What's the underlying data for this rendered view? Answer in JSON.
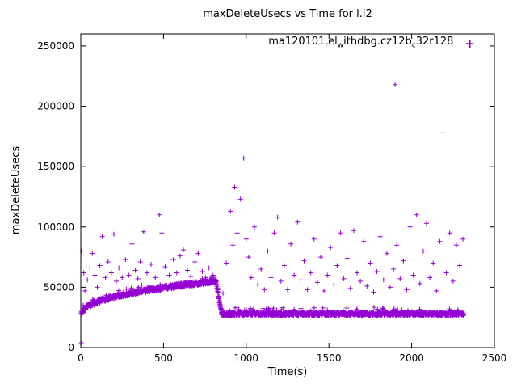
{
  "chart_data": {
    "type": "scatter",
    "title": "maxDeleteUsecs vs Time for l.i2",
    "xlabel": "Time(s)",
    "ylabel": "maxDeleteUsecs",
    "xlim": [
      0,
      2500
    ],
    "ylim": [
      0,
      260000
    ],
    "x_ticks": [
      0,
      500,
      1000,
      1500,
      2000,
      2500
    ],
    "y_ticks": [
      0,
      50000,
      100000,
      150000,
      200000,
      250000
    ],
    "grid": false,
    "marker": "plus",
    "color": "#9400d3",
    "legend": {
      "position": "top-center-inside",
      "label": "ma120101_rel_withdbg.cz12b_c32r128",
      "parts": [
        {
          "t": "ma120101",
          "sub": false
        },
        {
          "t": "r",
          "sub": true
        },
        {
          "t": "el",
          "sub": false
        },
        {
          "t": "w",
          "sub": true
        },
        {
          "t": "ithdbg.cz12b",
          "sub": false
        },
        {
          "t": "c",
          "sub": true
        },
        {
          "t": "32r128",
          "sub": false
        }
      ]
    },
    "series": [
      {
        "name": "ma120101_rel_withdbg.cz12b_c32r128",
        "dense_bands": [
          {
            "x_start": 2,
            "x_end": 818,
            "step": 1.2,
            "base": 25000,
            "amp": 30000,
            "power": 0.4,
            "ref": 820,
            "jitter": 1800
          },
          {
            "x_start": 852,
            "x_end": 2315,
            "step": 1.2,
            "base": 28000,
            "amp": 0,
            "power": 1,
            "ref": 820,
            "jitter": 1500
          }
        ],
        "transition": {
          "x_start": 818,
          "x_end": 852,
          "y_start": 54000,
          "y_end": 29000,
          "step": 1,
          "jitter": 2200
        },
        "outliers": [
          [
            3,
            4000
          ],
          [
            5,
            80000
          ],
          [
            18,
            62000
          ],
          [
            25,
            47000
          ],
          [
            40,
            56000
          ],
          [
            55,
            66000
          ],
          [
            70,
            78000
          ],
          [
            85,
            60000
          ],
          [
            100,
            50000
          ],
          [
            115,
            68000
          ],
          [
            130,
            92000
          ],
          [
            150,
            58000
          ],
          [
            165,
            71000
          ],
          [
            185,
            62000
          ],
          [
            200,
            94000
          ],
          [
            215,
            55000
          ],
          [
            230,
            66000
          ],
          [
            250,
            58000
          ],
          [
            270,
            73000
          ],
          [
            290,
            60000
          ],
          [
            310,
            86000
          ],
          [
            330,
            64000
          ],
          [
            345,
            57000
          ],
          [
            360,
            71000
          ],
          [
            380,
            96000
          ],
          [
            400,
            62000
          ],
          [
            425,
            69000
          ],
          [
            450,
            58000
          ],
          [
            475,
            110000
          ],
          [
            490,
            95000
          ],
          [
            510,
            67000
          ],
          [
            535,
            60000
          ],
          [
            560,
            73000
          ],
          [
            580,
            62000
          ],
          [
            600,
            76000
          ],
          [
            620,
            81000
          ],
          [
            645,
            64000
          ],
          [
            665,
            59000
          ],
          [
            690,
            71000
          ],
          [
            710,
            78000
          ],
          [
            735,
            63000
          ],
          [
            755,
            58000
          ],
          [
            775,
            66000
          ],
          [
            800,
            60000
          ],
          [
            860,
            45000
          ],
          [
            880,
            70000
          ],
          [
            905,
            113000
          ],
          [
            920,
            85000
          ],
          [
            930,
            133000
          ],
          [
            945,
            95000
          ],
          [
            965,
            123000
          ],
          [
            985,
            157000
          ],
          [
            1000,
            90000
          ],
          [
            1015,
            75000
          ],
          [
            1030,
            58000
          ],
          [
            1050,
            100000
          ],
          [
            1070,
            52000
          ],
          [
            1090,
            65000
          ],
          [
            1110,
            48000
          ],
          [
            1130,
            80000
          ],
          [
            1150,
            58000
          ],
          [
            1170,
            95000
          ],
          [
            1190,
            108000
          ],
          [
            1210,
            55000
          ],
          [
            1230,
            68000
          ],
          [
            1250,
            48000
          ],
          [
            1270,
            86000
          ],
          [
            1290,
            60000
          ],
          [
            1310,
            104000
          ],
          [
            1330,
            56000
          ],
          [
            1350,
            72000
          ],
          [
            1370,
            48000
          ],
          [
            1390,
            62000
          ],
          [
            1410,
            90000
          ],
          [
            1430,
            54000
          ],
          [
            1450,
            75000
          ],
          [
            1470,
            47000
          ],
          [
            1490,
            60000
          ],
          [
            1510,
            83000
          ],
          [
            1530,
            52000
          ],
          [
            1550,
            68000
          ],
          [
            1570,
            95000
          ],
          [
            1590,
            57000
          ],
          [
            1610,
            74000
          ],
          [
            1630,
            49000
          ],
          [
            1650,
            97000
          ],
          [
            1670,
            62000
          ],
          [
            1690,
            55000
          ],
          [
            1710,
            88000
          ],
          [
            1730,
            51000
          ],
          [
            1750,
            70000
          ],
          [
            1770,
            46000
          ],
          [
            1790,
            63000
          ],
          [
            1810,
            92000
          ],
          [
            1830,
            56000
          ],
          [
            1850,
            78000
          ],
          [
            1870,
            50000
          ],
          [
            1890,
            65000
          ],
          [
            1900,
            218000
          ],
          [
            1910,
            85000
          ],
          [
            1930,
            57000
          ],
          [
            1950,
            72000
          ],
          [
            1970,
            48000
          ],
          [
            1990,
            100000
          ],
          [
            2010,
            60000
          ],
          [
            2030,
            110000
          ],
          [
            2050,
            53000
          ],
          [
            2070,
            80000
          ],
          [
            2090,
            103000
          ],
          [
            2110,
            58000
          ],
          [
            2130,
            70000
          ],
          [
            2150,
            47000
          ],
          [
            2170,
            88000
          ],
          [
            2190,
            178000
          ],
          [
            2210,
            62000
          ],
          [
            2230,
            95000
          ],
          [
            2250,
            55000
          ],
          [
            2270,
            85000
          ],
          [
            2290,
            68000
          ],
          [
            2310,
            90000
          ]
        ]
      }
    ]
  }
}
